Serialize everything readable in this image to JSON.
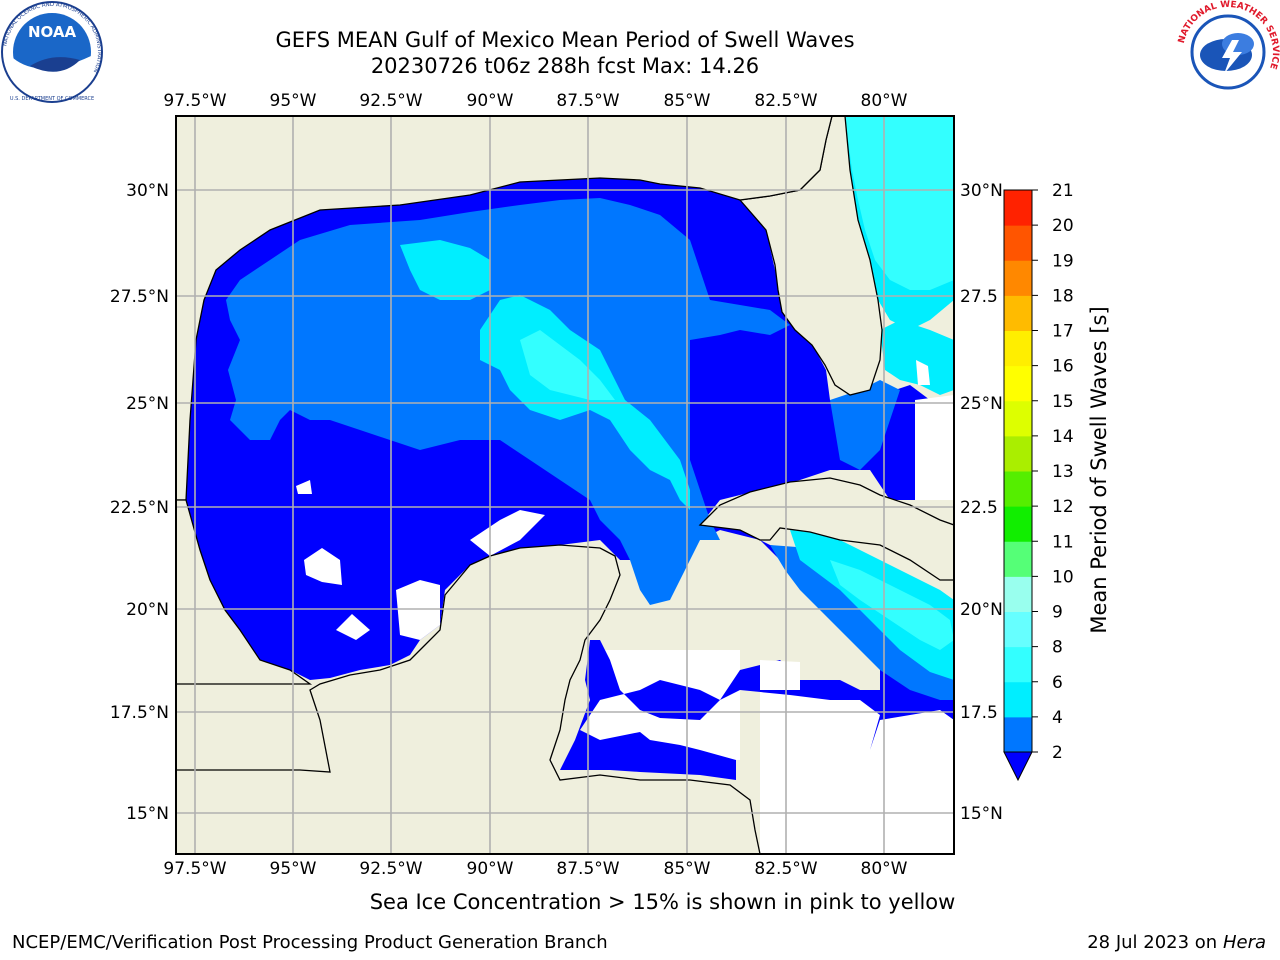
{
  "title": {
    "line1": "GEFS MEAN Gulf of Mexico Mean Period of Swell Waves",
    "line2": "20230726 t06z 288h fcst   Max: 14.26"
  },
  "caption": "Sea Ice Concentration > 15% is shown in pink to yellow",
  "footer": {
    "left": "NCEP/EMC/Verification Post Processing Product Generation Branch",
    "date": "28 Jul 2023 on ",
    "machine": "Hera"
  },
  "logos": {
    "noaa_text": "NOAA",
    "noaa_ring": "NATIONAL OCEANIC AND ATMOSPHERIC ADMINISTRATION",
    "noaa_ring_bottom": "U.S. DEPARTMENT OF COMMERCE",
    "nws_ring": "NATIONAL WEATHER SERVICE"
  },
  "map": {
    "lon_labels": [
      "97.5°W",
      "95°W",
      "92.5°W",
      "90°W",
      "87.5°W",
      "85°W",
      "82.5°W",
      "80°W"
    ],
    "lat_labels_left": [
      "30°N",
      "27.5°N",
      "25°N",
      "22.5°N",
      "20°N",
      "17.5°N",
      "15°N"
    ],
    "lat_labels_right": [
      "30°N",
      "27.5",
      "25°N",
      "22.5",
      "20°N",
      "17.5",
      "15°N"
    ]
  },
  "colorbar": {
    "label": "Mean Period of Swell Waves [s]",
    "ticks": [
      "2",
      "4",
      "6",
      "8",
      "9",
      "10",
      "11",
      "12",
      "13",
      "14",
      "15",
      "16",
      "17",
      "18",
      "19",
      "20",
      "21"
    ],
    "colors": [
      "#0077ff",
      "#00eeff",
      "#33ffff",
      "#66ffff",
      "#99ffee",
      "#55ff77",
      "#11ee00",
      "#55ee00",
      "#aaee00",
      "#ddff00",
      "#ffff00",
      "#ffee00",
      "#ffbb00",
      "#ff8800",
      "#ff5500",
      "#ff2200",
      "#ff0000"
    ],
    "under_color": "#0000ff"
  },
  "colors": {
    "land": "#efefdd",
    "period_2_4": "#0077ff",
    "period_under_2": "#0000ff",
    "period_4_6": "#00eeff",
    "period_6_8": "#33ffff"
  }
}
